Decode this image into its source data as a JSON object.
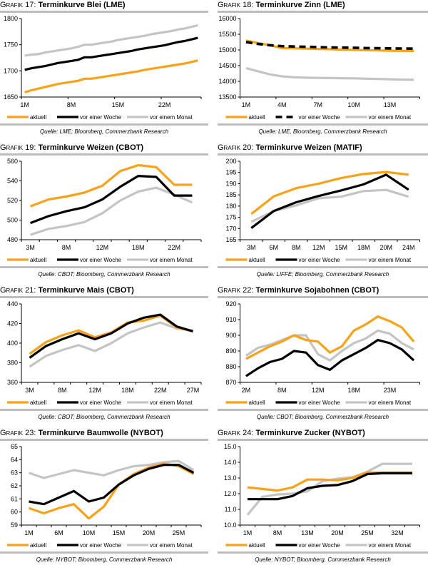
{
  "legend": {
    "aktuell": "aktuell",
    "woche": "vor einer Woche",
    "monat": "vor einem Monat"
  },
  "colors": {
    "aktuell": "#f7a21b",
    "woche": "#000000",
    "monat": "#c4c4c4"
  },
  "chart_data": [
    {
      "type": "line",
      "label": "Grafik 17:",
      "title": "Terminkurve Blei (LME)",
      "source": "Quelle: LME; Bloomberg, Commerzbank Research",
      "ylim": [
        1650,
        1800
      ],
      "yticks": [
        1650,
        1700,
        1750,
        1800
      ],
      "ytick_labels": [
        "1650",
        "1700",
        "1750",
        "1800"
      ],
      "x_count": 27,
      "xtick_labels": [
        {
          "i": 0,
          "t": "1M"
        },
        {
          "i": 7,
          "t": "8M"
        },
        {
          "i": 14,
          "t": "15M"
        },
        {
          "i": 21,
          "t": "22M"
        }
      ],
      "xticks_every": 7,
      "series": [
        {
          "name": "aktuell",
          "values": [
            1659,
            1663,
            1666,
            1669,
            1672,
            1675,
            1677,
            1679,
            1681,
            1685,
            1685,
            1687,
            1689,
            1691,
            1693,
            1695,
            1697,
            1699,
            1702,
            1704,
            1706,
            1708,
            1710,
            1712,
            1714,
            1717,
            1720
          ]
        },
        {
          "name": "vor einer Woche",
          "values": [
            1702,
            1705,
            1707,
            1709,
            1712,
            1715,
            1717,
            1719,
            1721,
            1726,
            1726,
            1728,
            1730,
            1732,
            1734,
            1736,
            1738,
            1741,
            1743,
            1745,
            1747,
            1749,
            1752,
            1755,
            1757,
            1760,
            1763
          ]
        },
        {
          "name": "vor einem Monat",
          "values": [
            1729,
            1731,
            1732,
            1735,
            1737,
            1739,
            1741,
            1743,
            1746,
            1750,
            1750,
            1752,
            1754,
            1756,
            1759,
            1761,
            1763,
            1765,
            1767,
            1770,
            1772,
            1774,
            1776,
            1779,
            1781,
            1784,
            1787
          ]
        }
      ]
    },
    {
      "type": "line",
      "label": "Grafik 18:",
      "title": "Terminkurve Zinn (LME)",
      "source": "Quelle: LME, Bloomberg, Commerzbank Research",
      "ylim": [
        13500,
        16000
      ],
      "yticks": [
        13500,
        14000,
        14500,
        15000,
        15500,
        16000
      ],
      "ytick_labels": [
        "13500",
        "14000",
        "14500",
        "15000",
        "15500",
        "16000"
      ],
      "x_count": 15,
      "xtick_labels": [
        {
          "i": 0,
          "t": "1M"
        },
        {
          "i": 3,
          "t": "4M"
        },
        {
          "i": 6,
          "t": "7M"
        },
        {
          "i": 9,
          "t": "10M"
        },
        {
          "i": 12,
          "t": "13M"
        }
      ],
      "xticks_every": 3,
      "series": [
        {
          "name": "aktuell",
          "values": [
            15300,
            15220,
            15150,
            15060,
            15050,
            15040,
            15030,
            15025,
            15010,
            15000,
            14990,
            14985,
            14975,
            14970,
            14965
          ]
        },
        {
          "name": "vor einer Woche",
          "values": [
            15250,
            15190,
            15150,
            15120,
            15110,
            15100,
            15090,
            15080,
            15075,
            15070,
            15060,
            15055,
            15050,
            15045,
            15040
          ],
          "dashed": true
        },
        {
          "name": "vor einem Monat",
          "values": [
            14420,
            14320,
            14220,
            14160,
            14130,
            14115,
            14110,
            14105,
            14100,
            14095,
            14085,
            14075,
            14065,
            14055,
            14050
          ]
        }
      ]
    },
    {
      "type": "line",
      "label": "Grafik 19:",
      "title": "Terminkurve Weizen (CBOT)",
      "source": "Quelle: CBOT; Bloomberg, Commerzbank Research",
      "ylim": [
        480,
        560
      ],
      "yticks": [
        480,
        500,
        520,
        540,
        560
      ],
      "ytick_labels": [
        "480",
        "500",
        "520",
        "540",
        "560"
      ],
      "x_count": 10,
      "xtick_labels": [
        {
          "i": 0,
          "t": "3M"
        },
        {
          "i": 2,
          "t": "8M"
        },
        {
          "i": 4,
          "t": "12M"
        },
        {
          "i": 6,
          "t": "18M"
        },
        {
          "i": 8,
          "t": "22M"
        }
      ],
      "xticks_every": 1,
      "series": [
        {
          "name": "aktuell",
          "values": [
            514,
            521,
            524,
            528,
            535,
            550,
            556,
            554,
            536,
            536
          ]
        },
        {
          "name": "vor einer Woche",
          "values": [
            497,
            504,
            509,
            513,
            521,
            534,
            545,
            544,
            525,
            525
          ]
        },
        {
          "name": "vor einem Monat",
          "values": [
            485,
            491,
            494,
            498,
            507,
            520,
            529,
            533,
            526,
            518
          ]
        }
      ]
    },
    {
      "type": "line",
      "label": "Grafik 20:",
      "title": "Terminkurve Weizen (MATIF)",
      "source": "Quelle: LIFFE; Bloomberg, Commerzbank Research",
      "ylim": [
        165,
        200
      ],
      "yticks": [
        165,
        170,
        175,
        180,
        185,
        190,
        195,
        200
      ],
      "ytick_labels": [
        "165",
        "170",
        "175",
        "180",
        "185",
        "190",
        "195",
        "200"
      ],
      "x_count": 8,
      "xtick_labels": [
        {
          "i": 0,
          "t": "3M"
        },
        {
          "i": 1,
          "t": "6M"
        },
        {
          "i": 2,
          "t": "8M"
        },
        {
          "i": 3,
          "t": "12M"
        },
        {
          "i": 4,
          "t": "15M"
        },
        {
          "i": 5,
          "t": "18M"
        },
        {
          "i": 6,
          "t": "20M"
        },
        {
          "i": 7,
          "t": "24M"
        }
      ],
      "xticks_every": 1,
      "series": [
        {
          "name": "aktuell",
          "values": [
            176.5,
            184.3,
            188,
            190,
            192.5,
            194.3,
            195.2,
            194
          ]
        },
        {
          "name": "vor einer Woche",
          "values": [
            170.2,
            177.8,
            181.7,
            184.5,
            187,
            189.7,
            194,
            187.3
          ]
        },
        {
          "name": "vor einem Monat",
          "values": [
            173,
            177.8,
            180.3,
            183.5,
            184.2,
            186.7,
            187.2,
            184.2
          ]
        }
      ]
    },
    {
      "type": "line",
      "label": "Grafik 21:",
      "title": "Terminkurve Mais (CBOT)",
      "source": "Quelle: CBOT; Bloomberg, Commerzbank Research",
      "ylim": [
        360,
        440
      ],
      "yticks": [
        360,
        380,
        400,
        420,
        440
      ],
      "ytick_labels": [
        "360",
        "380",
        "400",
        "420",
        "440"
      ],
      "x_count": 11,
      "xtick_labels": [
        {
          "i": 0,
          "t": "3M"
        },
        {
          "i": 2,
          "t": "8M"
        },
        {
          "i": 4,
          "t": "12M"
        },
        {
          "i": 6,
          "t": "18M"
        },
        {
          "i": 8,
          "t": "22M"
        },
        {
          "i": 10,
          "t": "27M"
        }
      ],
      "xticks_every": 1,
      "series": [
        {
          "name": "aktuell",
          "values": [
            389,
            401,
            408,
            413,
            406,
            411,
            421,
            423,
            428,
            416,
            412
          ]
        },
        {
          "name": "vor einer Woche",
          "values": [
            385,
            397,
            404,
            410,
            404,
            410,
            420,
            426,
            429,
            417,
            412
          ]
        },
        {
          "name": "vor einem Monat",
          "values": [
            376,
            387,
            393,
            398,
            392,
            400,
            410,
            416,
            421,
            415,
            413
          ]
        }
      ]
    },
    {
      "type": "line",
      "label": "Grafik 22:",
      "title": "Terminkurve Sojabohnen (CBOT)",
      "source": "Quelle: CBOT; Bloomberg, Commerzbank Research",
      "ylim": [
        870,
        920
      ],
      "yticks": [
        870,
        880,
        890,
        900,
        910,
        920
      ],
      "ytick_labels": [
        "870",
        "880",
        "890",
        "900",
        "910",
        "920"
      ],
      "x_count": 15,
      "xtick_labels": [
        {
          "i": 0,
          "t": "2M"
        },
        {
          "i": 3,
          "t": "8M"
        },
        {
          "i": 6,
          "t": "12M"
        },
        {
          "i": 9,
          "t": "18M"
        },
        {
          "i": 12,
          "t": "23M"
        }
      ],
      "xticks_every": 3,
      "series": [
        {
          "name": "aktuell",
          "values": [
            885,
            889,
            893,
            896,
            900,
            897,
            896,
            889,
            893,
            903,
            907,
            912,
            909,
            905,
            896
          ]
        },
        {
          "name": "vor einer Woche",
          "values": [
            874,
            879,
            883,
            885,
            890,
            889,
            881,
            878,
            884,
            888,
            892,
            897,
            895,
            891,
            884
          ]
        },
        {
          "name": "vor einem Monat",
          "values": [
            887,
            892,
            894,
            897,
            900,
            900,
            888,
            884,
            890,
            895,
            898,
            903,
            901,
            895,
            891
          ]
        }
      ]
    },
    {
      "type": "line",
      "label": "Grafik 23:",
      "title": "Terminkurve Baumwolle (NYBOT)",
      "source": "Quelle: NYBOT; Bloomberg, Commerzbank Research",
      "ylim": [
        59,
        65
      ],
      "yticks": [
        59,
        60,
        61,
        62,
        63,
        64,
        65
      ],
      "ytick_labels": [
        "59",
        "60",
        "61",
        "62",
        "63",
        "64",
        "65"
      ],
      "x_count": 12,
      "xtick_labels": [
        {
          "i": 0,
          "t": "1M"
        },
        {
          "i": 2,
          "t": "6M"
        },
        {
          "i": 4,
          "t": "10M"
        },
        {
          "i": 6,
          "t": "15M"
        },
        {
          "i": 8,
          "t": "20M"
        },
        {
          "i": 10,
          "t": "25M"
        }
      ],
      "xticks_every": 1,
      "series": [
        {
          "name": "aktuell",
          "values": [
            60.3,
            59.9,
            60.3,
            60.6,
            59.5,
            60.4,
            62.1,
            62.9,
            63.4,
            63.7,
            63.5,
            62.9
          ]
        },
        {
          "name": "vor einer Woche",
          "values": [
            60.8,
            60.6,
            61.1,
            61.6,
            60.8,
            61.1,
            62.1,
            62.8,
            63.3,
            63.6,
            63.6,
            63.0
          ]
        },
        {
          "name": "vor einem Monat",
          "values": [
            63.0,
            62.6,
            62.9,
            63.2,
            63.0,
            62.8,
            63.2,
            63.5,
            63.6,
            63.8,
            63.9,
            63.2
          ]
        }
      ]
    },
    {
      "type": "line",
      "label": "Grafik 24:",
      "title": "Terminkurve Zucker (NYBOT)",
      "source": "Quelle: NYBOT; Bloomberg, Commerzbank Research",
      "ylim": [
        10.0,
        15.0
      ],
      "yticks": [
        10,
        11,
        12,
        13,
        14,
        15
      ],
      "ytick_labels": [
        "10.0",
        "11.0",
        "12.0",
        "13.0",
        "14.0",
        "15.0"
      ],
      "x_count": 12,
      "xtick_labels": [
        {
          "i": 0,
          "t": "1M"
        },
        {
          "i": 2,
          "t": "8M"
        },
        {
          "i": 4,
          "t": "13M"
        },
        {
          "i": 6,
          "t": "20M"
        },
        {
          "i": 8,
          "t": "25M"
        },
        {
          "i": 10,
          "t": "32M"
        }
      ],
      "xticks_every": 1,
      "series": [
        {
          "name": "aktuell",
          "values": [
            12.4,
            12.3,
            12.2,
            12.4,
            12.9,
            12.9,
            12.85,
            13.0,
            13.35,
            13.35,
            13.35,
            13.35
          ]
        },
        {
          "name": "vor einer Woche",
          "values": [
            11.65,
            11.65,
            11.65,
            11.85,
            12.35,
            12.5,
            12.55,
            12.8,
            13.25,
            13.3,
            13.3,
            13.3
          ]
        },
        {
          "name": "vor einem Monat",
          "values": [
            10.65,
            11.8,
            11.95,
            12.0,
            12.15,
            12.8,
            12.95,
            13.05,
            13.4,
            13.9,
            13.9,
            13.9
          ]
        }
      ]
    }
  ]
}
